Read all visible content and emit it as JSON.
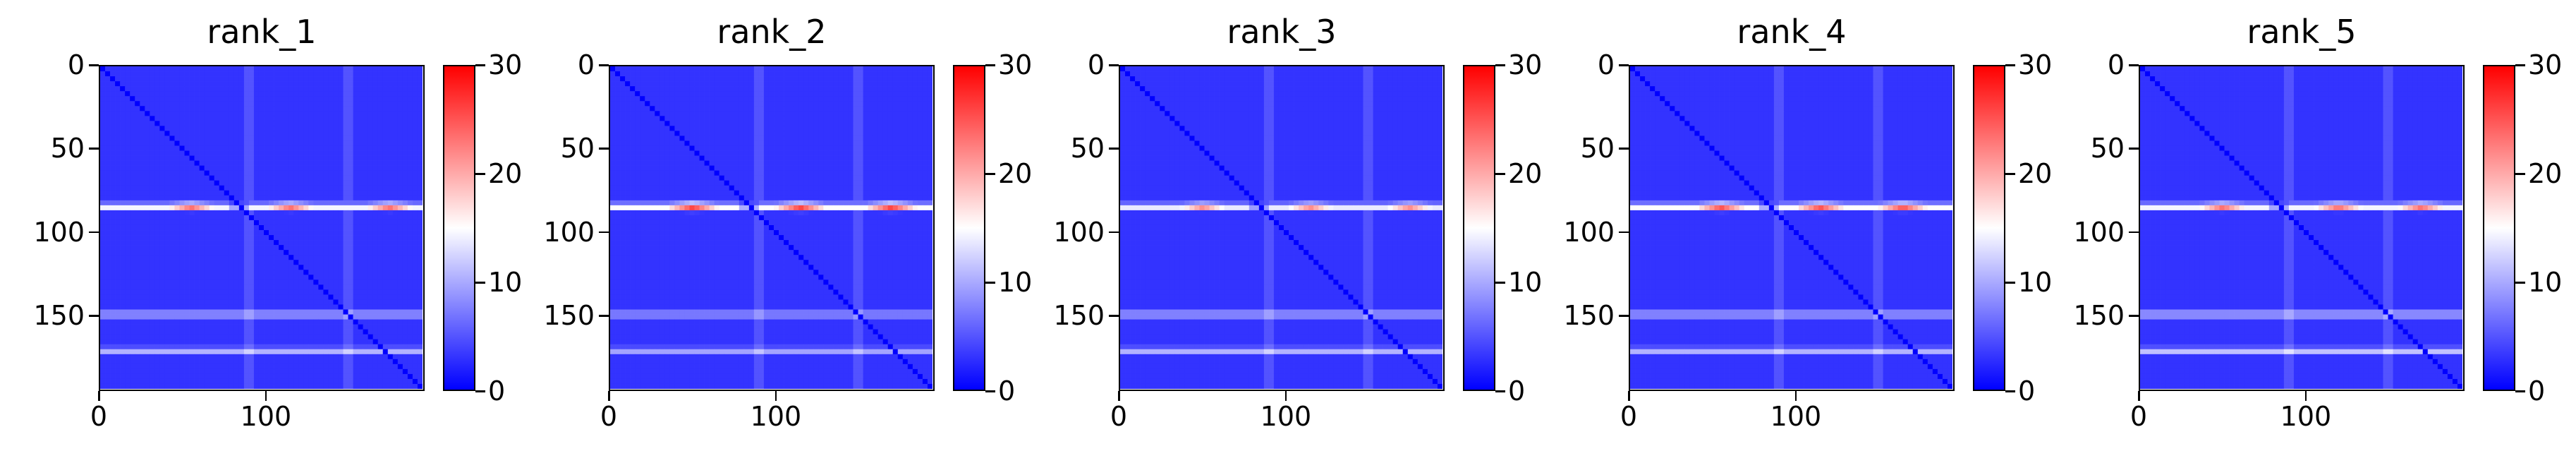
{
  "chart_data": [
    {
      "type": "heatmap",
      "title": "rank_1",
      "matrix_size": 195,
      "x_ticks": [
        0,
        100
      ],
      "y_ticks": [
        0,
        50,
        100,
        150
      ],
      "colorbar": {
        "min": 0,
        "max": 30,
        "ticks": [
          0,
          10,
          20,
          30
        ],
        "colormap": "bwr"
      },
      "features": {
        "baseline": 3,
        "diagonal_value": 0,
        "band_row": 85,
        "band_value": 22,
        "band_peaks": [
          55,
          115,
          175
        ],
        "band_peak_value": 27,
        "secondary_rows": [
          150,
          172
        ],
        "secondary_value": 12,
        "vertical_cols": [
          90,
          150
        ],
        "vertical_value": 8
      }
    },
    {
      "type": "heatmap",
      "title": "rank_2",
      "matrix_size": 195,
      "x_ticks": [
        0,
        100
      ],
      "y_ticks": [
        0,
        50,
        100,
        150
      ],
      "colorbar": {
        "min": 0,
        "max": 30,
        "ticks": [
          0,
          10,
          20,
          30
        ],
        "colormap": "bwr"
      },
      "features": {
        "baseline": 3,
        "diagonal_value": 0,
        "band_row": 85,
        "band_value": 23,
        "band_peaks": [
          50,
          115,
          170
        ],
        "band_peak_value": 30,
        "secondary_rows": [
          150,
          172
        ],
        "secondary_value": 11,
        "vertical_cols": [
          90,
          150
        ],
        "vertical_value": 8
      }
    },
    {
      "type": "heatmap",
      "title": "rank_3",
      "matrix_size": 195,
      "x_ticks": [
        0,
        100
      ],
      "y_ticks": [
        0,
        50,
        100,
        150
      ],
      "colorbar": {
        "min": 0,
        "max": 30,
        "ticks": [
          0,
          10,
          20,
          30
        ],
        "colormap": "bwr"
      },
      "features": {
        "baseline": 3,
        "diagonal_value": 0,
        "band_row": 85,
        "band_value": 21,
        "band_peaks": [
          50,
          115,
          175
        ],
        "band_peak_value": 25,
        "secondary_rows": [
          150,
          172
        ],
        "secondary_value": 12,
        "vertical_cols": [
          90,
          150
        ],
        "vertical_value": 8
      }
    },
    {
      "type": "heatmap",
      "title": "rank_4",
      "matrix_size": 195,
      "x_ticks": [
        0,
        100
      ],
      "y_ticks": [
        0,
        50,
        100,
        150
      ],
      "colorbar": {
        "min": 0,
        "max": 30,
        "ticks": [
          0,
          10,
          20,
          30
        ],
        "colormap": "bwr"
      },
      "features": {
        "baseline": 3,
        "diagonal_value": 0,
        "band_row": 85,
        "band_value": 23,
        "band_peaks": [
          55,
          115,
          165
        ],
        "band_peak_value": 29,
        "secondary_rows": [
          150,
          172
        ],
        "secondary_value": 12,
        "vertical_cols": [
          90,
          150
        ],
        "vertical_value": 8
      }
    },
    {
      "type": "heatmap",
      "title": "rank_5",
      "matrix_size": 195,
      "x_ticks": [
        0,
        100
      ],
      "y_ticks": [
        0,
        50,
        100,
        150
      ],
      "colorbar": {
        "min": 0,
        "max": 30,
        "ticks": [
          0,
          10,
          20,
          30
        ],
        "colormap": "bwr"
      },
      "features": {
        "baseline": 3,
        "diagonal_value": 0,
        "band_row": 85,
        "band_value": 22,
        "band_peaks": [
          50,
          120,
          170
        ],
        "band_peak_value": 27,
        "secondary_rows": [
          150,
          172
        ],
        "secondary_value": 13,
        "vertical_cols": [
          90,
          150
        ],
        "vertical_value": 8
      }
    }
  ]
}
